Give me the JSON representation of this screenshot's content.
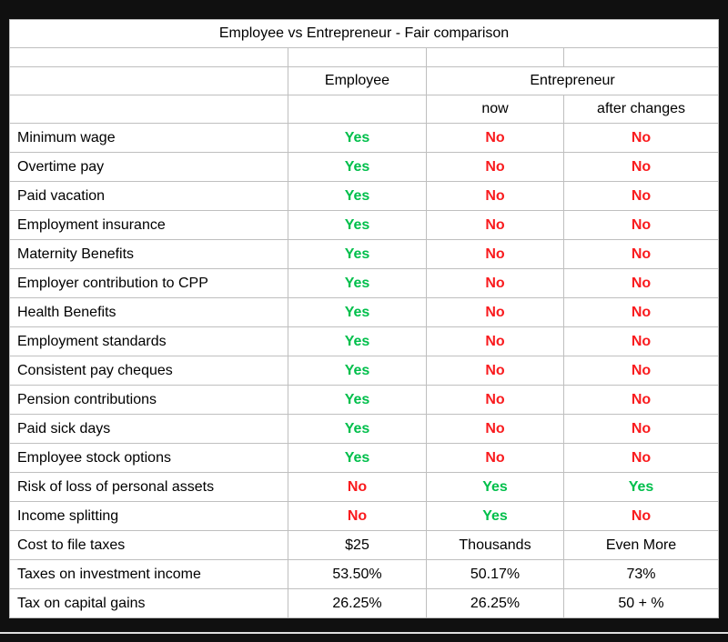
{
  "table": {
    "title": "Employee vs Entrepreneur - Fair comparison",
    "header": {
      "employee": "Employee",
      "entrepreneur": "Entrepreneur",
      "sub_now": "now",
      "sub_after": "after changes"
    },
    "palette": {
      "green": "#00bf4b",
      "red": "#f91b1e",
      "plain": "#000000",
      "grid": "#bfbfbf",
      "table_bg": "#ffffff",
      "page_bg": "#101010"
    },
    "rows": [
      {
        "label": "Minimum wage",
        "values": [
          {
            "text": "Yes",
            "tone": "green"
          },
          {
            "text": "No",
            "tone": "red"
          },
          {
            "text": "No",
            "tone": "red"
          }
        ]
      },
      {
        "label": "Overtime pay",
        "values": [
          {
            "text": "Yes",
            "tone": "green"
          },
          {
            "text": "No",
            "tone": "red"
          },
          {
            "text": "No",
            "tone": "red"
          }
        ]
      },
      {
        "label": "Paid vacation",
        "values": [
          {
            "text": "Yes",
            "tone": "green"
          },
          {
            "text": "No",
            "tone": "red"
          },
          {
            "text": "No",
            "tone": "red"
          }
        ]
      },
      {
        "label": "Employment insurance",
        "values": [
          {
            "text": "Yes",
            "tone": "green"
          },
          {
            "text": "No",
            "tone": "red"
          },
          {
            "text": "No",
            "tone": "red"
          }
        ]
      },
      {
        "label": "Maternity Benefits",
        "values": [
          {
            "text": "Yes",
            "tone": "green"
          },
          {
            "text": "No",
            "tone": "red"
          },
          {
            "text": "No",
            "tone": "red"
          }
        ]
      },
      {
        "label": "Employer contribution to CPP",
        "values": [
          {
            "text": "Yes",
            "tone": "green"
          },
          {
            "text": "No",
            "tone": "red"
          },
          {
            "text": "No",
            "tone": "red"
          }
        ]
      },
      {
        "label": "Health Benefits",
        "values": [
          {
            "text": "Yes",
            "tone": "green"
          },
          {
            "text": "No",
            "tone": "red"
          },
          {
            "text": "No",
            "tone": "red"
          }
        ]
      },
      {
        "label": "Employment standards",
        "values": [
          {
            "text": "Yes",
            "tone": "green"
          },
          {
            "text": "No",
            "tone": "red"
          },
          {
            "text": "No",
            "tone": "red"
          }
        ]
      },
      {
        "label": "Consistent pay cheques",
        "values": [
          {
            "text": "Yes",
            "tone": "green"
          },
          {
            "text": "No",
            "tone": "red"
          },
          {
            "text": "No",
            "tone": "red"
          }
        ]
      },
      {
        "label": "Pension contributions",
        "values": [
          {
            "text": "Yes",
            "tone": "green"
          },
          {
            "text": "No",
            "tone": "red"
          },
          {
            "text": "No",
            "tone": "red"
          }
        ]
      },
      {
        "label": "Paid sick days",
        "values": [
          {
            "text": "Yes",
            "tone": "green"
          },
          {
            "text": "No",
            "tone": "red"
          },
          {
            "text": "No",
            "tone": "red"
          }
        ]
      },
      {
        "label": "Employee stock options",
        "values": [
          {
            "text": "Yes",
            "tone": "green"
          },
          {
            "text": "No",
            "tone": "red"
          },
          {
            "text": "No",
            "tone": "red"
          }
        ]
      },
      {
        "label": "Risk of loss of personal assets",
        "values": [
          {
            "text": "No",
            "tone": "red"
          },
          {
            "text": "Yes",
            "tone": "green"
          },
          {
            "text": "Yes",
            "tone": "green"
          }
        ]
      },
      {
        "label": "Income splitting",
        "values": [
          {
            "text": "No",
            "tone": "red"
          },
          {
            "text": "Yes",
            "tone": "green"
          },
          {
            "text": "No",
            "tone": "red"
          }
        ]
      },
      {
        "label": "Cost to file taxes",
        "values": [
          {
            "text": "$25",
            "tone": "plain"
          },
          {
            "text": "Thousands",
            "tone": "plain"
          },
          {
            "text": "Even More",
            "tone": "plain"
          }
        ]
      },
      {
        "label": "Taxes on investment income",
        "values": [
          {
            "text": "53.50%",
            "tone": "plain"
          },
          {
            "text": "50.17%",
            "tone": "plain"
          },
          {
            "text": "73%",
            "tone": "plain"
          }
        ]
      },
      {
        "label": "Tax on capital gains",
        "values": [
          {
            "text": "26.25%",
            "tone": "plain"
          },
          {
            "text": "26.25%",
            "tone": "plain"
          },
          {
            "text": "50 + %",
            "tone": "plain"
          }
        ]
      }
    ]
  },
  "chart_data": {
    "type": "table",
    "title": "Employee vs Entrepreneur - Fair comparison",
    "columns": [
      "",
      "Employee",
      "Entrepreneur (now)",
      "Entrepreneur (after changes)"
    ],
    "rows": [
      [
        "Minimum wage",
        "Yes",
        "No",
        "No"
      ],
      [
        "Overtime pay",
        "Yes",
        "No",
        "No"
      ],
      [
        "Paid vacation",
        "Yes",
        "No",
        "No"
      ],
      [
        "Employment insurance",
        "Yes",
        "No",
        "No"
      ],
      [
        "Maternity Benefits",
        "Yes",
        "No",
        "No"
      ],
      [
        "Employer contribution to CPP",
        "Yes",
        "No",
        "No"
      ],
      [
        "Health Benefits",
        "Yes",
        "No",
        "No"
      ],
      [
        "Employment standards",
        "Yes",
        "No",
        "No"
      ],
      [
        "Consistent pay cheques",
        "Yes",
        "No",
        "No"
      ],
      [
        "Pension contributions",
        "Yes",
        "No",
        "No"
      ],
      [
        "Paid sick days",
        "Yes",
        "No",
        "No"
      ],
      [
        "Employee stock options",
        "Yes",
        "No",
        "No"
      ],
      [
        "Risk of loss of personal assets",
        "No",
        "Yes",
        "Yes"
      ],
      [
        "Income splitting",
        "No",
        "Yes",
        "No"
      ],
      [
        "Cost to file taxes",
        "$25",
        "Thousands",
        "Even More"
      ],
      [
        "Taxes on investment income",
        "53.50%",
        "50.17%",
        "73%"
      ],
      [
        "Tax on capital gains",
        "26.25%",
        "26.25%",
        "50 + %"
      ]
    ]
  }
}
